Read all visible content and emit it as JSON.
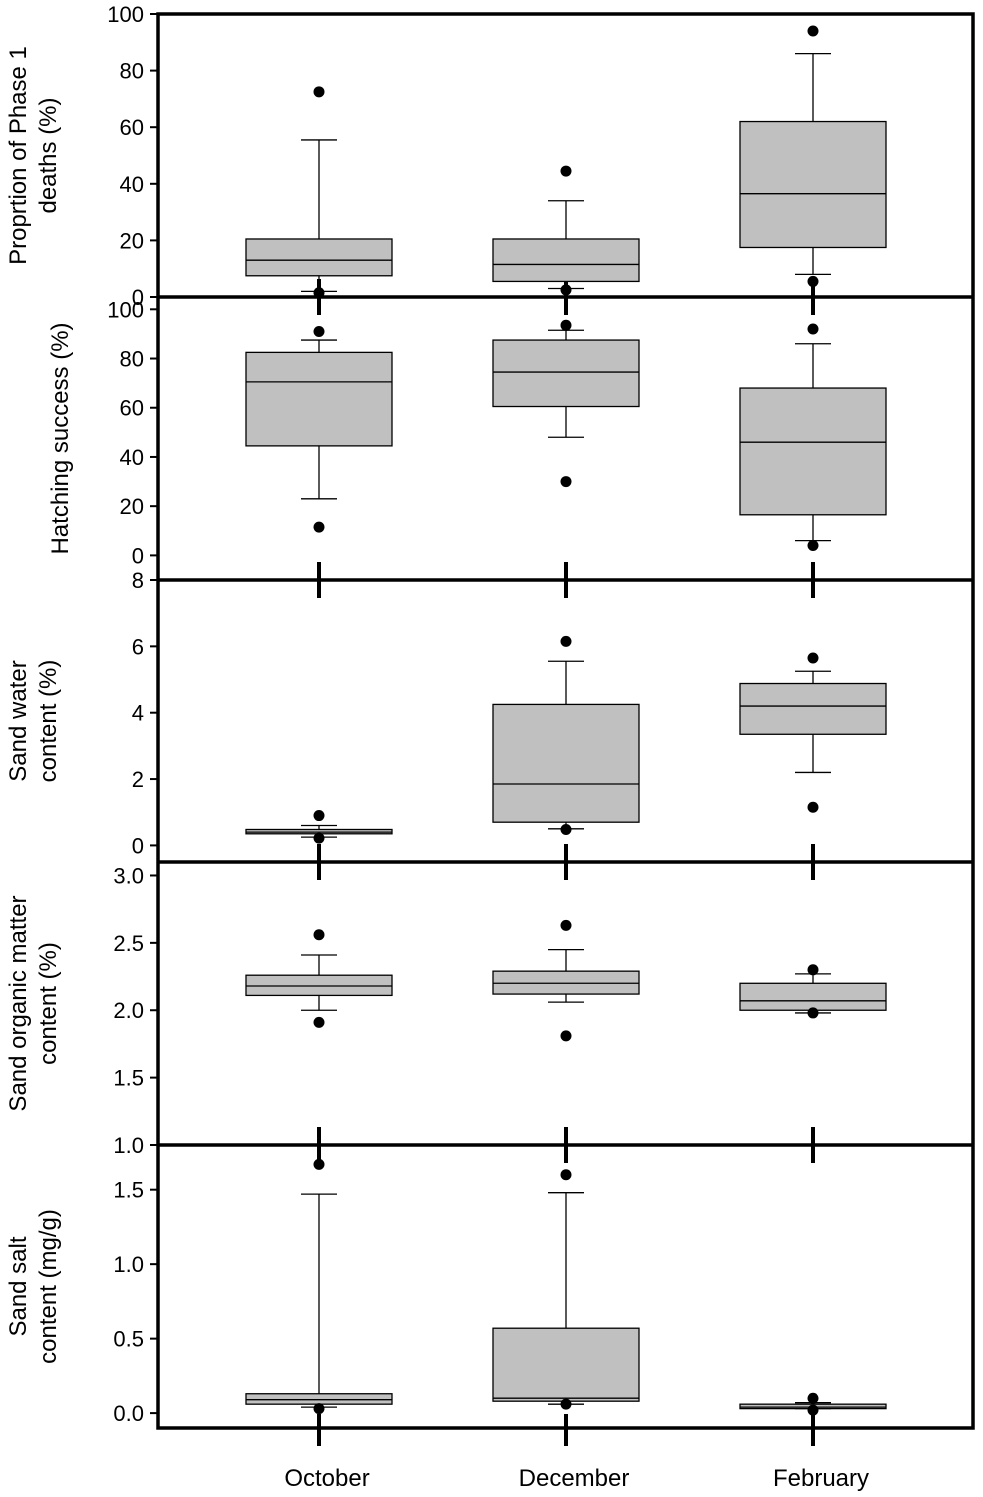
{
  "chart_data": {
    "type": "boxplot",
    "categories": [
      "October",
      "December",
      "February"
    ],
    "colors": {
      "box_fill": "#c0c0c0",
      "box_stroke": "#000000",
      "outlier": "#000000"
    },
    "panels": [
      {
        "ylabel_lines": [
          "Proprtion of Phase 1",
          "deaths (%)"
        ],
        "ylim": [
          0,
          100
        ],
        "ticks": [
          0,
          20,
          40,
          60,
          80,
          100
        ],
        "tick_labels": [
          "0",
          "20",
          "40",
          "60",
          "80",
          "100"
        ],
        "boxes": [
          {
            "whisker_low": 2,
            "q1": 7.5,
            "median": 13,
            "q3": 20.5,
            "whisker_high": 55.5,
            "outliers": [
              72.5,
              1.5
            ]
          },
          {
            "whisker_low": 3,
            "q1": 5.5,
            "median": 11.5,
            "q3": 20.5,
            "whisker_high": 34,
            "outliers": [
              44.5,
              2.5
            ]
          },
          {
            "whisker_low": 8,
            "q1": 17.5,
            "median": 36.5,
            "q3": 62,
            "whisker_high": 86,
            "outliers": [
              94,
              5.5
            ]
          }
        ]
      },
      {
        "ylabel_lines": [
          "Hatching success (%)"
        ],
        "ylim": [
          -10,
          105
        ],
        "ticks": [
          0,
          20,
          40,
          60,
          80,
          100
        ],
        "tick_labels": [
          "0",
          "20",
          "40",
          "60",
          "80",
          "100"
        ],
        "boxes": [
          {
            "whisker_low": 23,
            "q1": 44.5,
            "median": 70.5,
            "q3": 82.5,
            "whisker_high": 87.5,
            "outliers": [
              91,
              11.5
            ]
          },
          {
            "whisker_low": 48,
            "q1": 60.5,
            "median": 74.5,
            "q3": 87.5,
            "whisker_high": 91.5,
            "outliers": [
              93.5,
              30
            ]
          },
          {
            "whisker_low": 6,
            "q1": 16.5,
            "median": 46,
            "q3": 68,
            "whisker_high": 86,
            "outliers": [
              92,
              4
            ]
          }
        ]
      },
      {
        "ylabel_lines": [
          "Sand water",
          "content (%)"
        ],
        "ylim": [
          -0.5,
          8
        ],
        "ticks": [
          0,
          2,
          4,
          6,
          8
        ],
        "tick_labels": [
          "0",
          "2",
          "4",
          "6",
          "8"
        ],
        "boxes": [
          {
            "whisker_low": 0.25,
            "q1": 0.35,
            "median": 0.4,
            "q3": 0.48,
            "whisker_high": 0.6,
            "outliers": [
              0.9,
              0.22
            ]
          },
          {
            "whisker_low": 0.5,
            "q1": 0.7,
            "median": 1.85,
            "q3": 4.25,
            "whisker_high": 5.55,
            "outliers": [
              6.15,
              0.48
            ]
          },
          {
            "whisker_low": 2.2,
            "q1": 3.35,
            "median": 4.2,
            "q3": 4.88,
            "whisker_high": 5.25,
            "outliers": [
              5.65,
              1.15
            ]
          }
        ]
      },
      {
        "ylabel_lines": [
          "Sand organic matter",
          "content (%)"
        ],
        "ylim": [
          1.0,
          3.1
        ],
        "ticks": [
          1.0,
          1.5,
          2.0,
          2.5,
          3.0
        ],
        "tick_labels": [
          "1.0",
          "1.5",
          "2.0",
          "2.5",
          "3.0"
        ],
        "boxes": [
          {
            "whisker_low": 2.0,
            "q1": 2.11,
            "median": 2.18,
            "q3": 2.26,
            "whisker_high": 2.41,
            "outliers": [
              2.56,
              1.91
            ]
          },
          {
            "whisker_low": 2.06,
            "q1": 2.12,
            "median": 2.2,
            "q3": 2.29,
            "whisker_high": 2.45,
            "outliers": [
              2.63,
              1.81
            ]
          },
          {
            "whisker_low": 1.98,
            "q1": 2.0,
            "median": 2.07,
            "q3": 2.2,
            "whisker_high": 2.27,
            "outliers": [
              2.3,
              1.98
            ]
          }
        ]
      },
      {
        "ylabel_lines": [
          "Sand salt",
          "content (mg/g)"
        ],
        "ylim": [
          -0.1,
          1.8
        ],
        "ticks": [
          0.0,
          0.5,
          1.0,
          1.5
        ],
        "tick_labels": [
          "0.0",
          "0.5",
          "1.0",
          "1.5"
        ],
        "boxes": [
          {
            "whisker_low": 0.04,
            "q1": 0.06,
            "median": 0.09,
            "q3": 0.13,
            "whisker_high": 1.47,
            "outliers": [
              1.67,
              0.03
            ]
          },
          {
            "whisker_low": 0.06,
            "q1": 0.08,
            "median": 0.1,
            "q3": 0.57,
            "whisker_high": 1.48,
            "outliers": [
              1.6,
              0.06
            ]
          },
          {
            "whisker_low": 0.03,
            "q1": 0.03,
            "median": 0.04,
            "q3": 0.06,
            "whisker_high": 0.07,
            "outliers": [
              0.1,
              0.02
            ]
          }
        ]
      }
    ]
  }
}
